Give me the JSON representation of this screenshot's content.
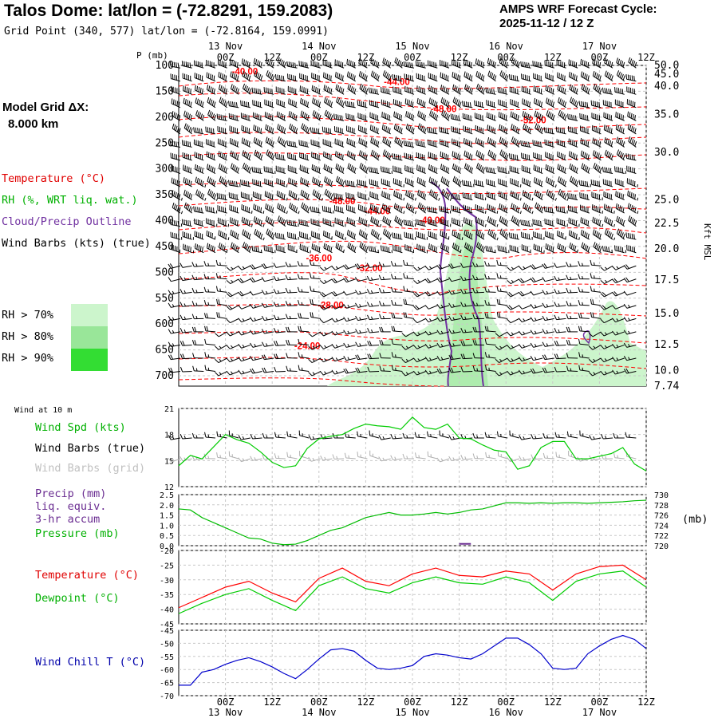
{
  "header": {
    "title": "Talos Dome:  lat/lon = (-72.8291, 159.2083)",
    "grid_point": "Grid Point (340, 577) lat/lon = (-72.8164, 159.0991)",
    "cycle_line1": "AMPS WRF Forecast Cycle:",
    "cycle_line2": "2025-11-12 / 12  Z",
    "model_grid_label": "Model Grid ΔX:",
    "model_grid_value": "8.000 km"
  },
  "colors": {
    "temperature": "#ff0000",
    "rh": "#00cc00",
    "cloud": "#7030a0",
    "wind": "#000000",
    "wind_grid": "#b0b0b0",
    "precip": "#6a2c91",
    "pressure": "#00bb00",
    "dewpoint": "#00cc00",
    "windchill": "#0000cc",
    "rh70": "#ccf5cc",
    "rh80": "#99e699",
    "rh90": "#33dd33"
  },
  "legend": {
    "temperature": "Temperature (°C)",
    "rh": "RH (%, WRT liq. wat.)",
    "cloud": "Cloud/Precip Outline",
    "wind": "Wind Barbs (kts) (true)",
    "rh70": "RH > 70%",
    "rh80": "RH > 80%",
    "rh90": "RH > 90%",
    "wind10": "Wind at 10 m",
    "wind_spd": "Wind Spd (kts)",
    "wind_true": "Wind Barbs (true)",
    "wind_grid": "Wind Barbs (grid)",
    "precip1": "Precip (mm)",
    "precip2": "liq. equiv.",
    "precip3": "3-hr accum",
    "pressure": "Pressure (mb)",
    "pressure_unit": "(mb)",
    "temp2": "Temperature (°C)",
    "dewpoint": "Dewpoint (°C)",
    "windchill": "Wind Chill T (°C)"
  },
  "chart_data": [
    {
      "type": "heatmap",
      "name": "time-height cross section",
      "time_ticks": [
        "00Z",
        "12Z",
        "00Z",
        "12Z",
        "00Z",
        "12Z",
        "00Z",
        "12Z",
        "00Z",
        "12Z"
      ],
      "time_tick_hours": [
        0,
        12,
        24,
        36,
        48,
        60,
        72,
        84,
        96,
        108
      ],
      "date_labels": [
        "13 Nov",
        "14 Nov",
        "15 Nov",
        "16 Nov",
        "17 Nov"
      ],
      "date_label_hours": [
        0,
        24,
        48,
        72,
        96
      ],
      "x_range_hours": [
        -12,
        108
      ],
      "pressure_axis_label": "P (mb)",
      "pressure_ticks": [
        100,
        150,
        200,
        250,
        300,
        350,
        400,
        450,
        500,
        550,
        600,
        650,
        700
      ],
      "ylim_mb": [
        100,
        720
      ],
      "height_axis_label": "Kft MSL",
      "height_ticks": [
        {
          "p": 100,
          "label": "50.0"
        },
        {
          "p": 117,
          "label": "45.0"
        },
        {
          "p": 140,
          "label": "40.0"
        },
        {
          "p": 195,
          "label": "35.0"
        },
        {
          "p": 268,
          "label": "30.0"
        },
        {
          "p": 360,
          "label": "25.0"
        },
        {
          "p": 405,
          "label": "22.5"
        },
        {
          "p": 455,
          "label": "20.0"
        },
        {
          "p": 515,
          "label": "17.5"
        },
        {
          "p": 580,
          "label": "15.0"
        },
        {
          "p": 640,
          "label": "12.5"
        },
        {
          "p": 690,
          "label": "10.0"
        },
        {
          "p": 720,
          "label": "7.74"
        }
      ],
      "temperature_labels": [
        {
          "t": 5,
          "p": 118,
          "label": "-40.00"
        },
        {
          "t": 44,
          "p": 138,
          "label": "-44.00"
        },
        {
          "t": 56,
          "p": 190,
          "label": "-48.00"
        },
        {
          "t": 79,
          "p": 212,
          "label": "-52.00"
        },
        {
          "t": 30,
          "p": 368,
          "label": "-48.00"
        },
        {
          "t": 39,
          "p": 388,
          "label": "-44.00"
        },
        {
          "t": 53,
          "p": 405,
          "label": "-40.00"
        },
        {
          "t": 24,
          "p": 479,
          "label": "-36.00"
        },
        {
          "t": 37,
          "p": 498,
          "label": "-32.00"
        },
        {
          "t": 27,
          "p": 570,
          "label": "-28.00"
        },
        {
          "t": 21,
          "p": 648,
          "label": "-24.00"
        }
      ]
    },
    {
      "type": "line",
      "name": "wind speed 10 m",
      "series": [
        {
          "name": "Wind Spd (kts)",
          "x": [
            -12,
            -9,
            -6,
            -3,
            0,
            3,
            6,
            9,
            12,
            15,
            18,
            21,
            24,
            27,
            30,
            33,
            36,
            39,
            42,
            45,
            48,
            51,
            54,
            57,
            60,
            63,
            66,
            69,
            72,
            75,
            78,
            81,
            84,
            87,
            90,
            93,
            96,
            99,
            102,
            105,
            108
          ],
          "values": [
            14.4,
            15.6,
            15.2,
            16.6,
            18,
            17.4,
            17,
            16,
            14.8,
            14.2,
            14.4,
            16.4,
            17.5,
            17.8,
            18,
            18.7,
            19.2,
            19,
            18.9,
            18.6,
            20,
            18.8,
            18.6,
            19.2,
            17.6,
            17.5,
            16.8,
            16.2,
            16,
            14,
            14.4,
            16.5,
            17.2,
            17.2,
            15.2,
            15.2,
            15.5,
            15.8,
            16.5,
            14.6,
            13.8
          ]
        }
      ],
      "ylim": [
        12,
        21
      ],
      "yticks": [
        12,
        15,
        18,
        21
      ]
    },
    {
      "type": "line",
      "name": "precip and pressure",
      "series": [
        {
          "name": "Pressure (mb)",
          "x": [
            -12,
            -9,
            -6,
            -3,
            0,
            3,
            6,
            9,
            12,
            15,
            18,
            21,
            24,
            27,
            30,
            33,
            36,
            39,
            42,
            45,
            48,
            51,
            54,
            57,
            60,
            63,
            66,
            69,
            72,
            75,
            78,
            81,
            84,
            87,
            90,
            93,
            96,
            99,
            102,
            105,
            108
          ],
          "values": [
            727.2,
            727,
            725.5,
            724.5,
            723.5,
            722.5,
            721.5,
            721.3,
            720.5,
            720.2,
            720.3,
            721,
            722,
            723,
            723.5,
            724.5,
            725.5,
            726,
            726.5,
            726,
            726,
            726.2,
            726.5,
            726.2,
            726.5,
            727,
            727.2,
            727.8,
            728.4,
            728.4,
            728.3,
            728.4,
            728.3,
            728.4,
            728.4,
            728.3,
            728.4,
            728.5,
            728.6,
            728.8,
            728.9
          ]
        },
        {
          "name": "Precip (mm)",
          "x": [
            60,
            63
          ],
          "values": [
            0.05,
            0.05
          ]
        }
      ],
      "precip_ylim": [
        0,
        2.5
      ],
      "precip_yticks": [
        0,
        0.5,
        1,
        1.5,
        2,
        2.5
      ],
      "pressure_ylim": [
        720,
        730
      ],
      "pressure_yticks": [
        720,
        722,
        724,
        726,
        728,
        730
      ]
    },
    {
      "type": "line",
      "name": "temperature and dewpoint",
      "series": [
        {
          "name": "Temperature (°C)",
          "x": [
            -12,
            -6,
            0,
            6,
            12,
            18,
            24,
            30,
            36,
            42,
            48,
            54,
            60,
            66,
            72,
            78,
            84,
            90,
            96,
            102,
            108
          ],
          "values": [
            -39.5,
            -36,
            -32.5,
            -30.5,
            -34.5,
            -37.5,
            -29.5,
            -26,
            -30.5,
            -32,
            -28,
            -26,
            -28.5,
            -29,
            -27,
            -28,
            -33.5,
            -28,
            -25.5,
            -25,
            -30
          ]
        },
        {
          "name": "Dewpoint (°C)",
          "x": [
            -12,
            -6,
            0,
            6,
            12,
            18,
            24,
            30,
            36,
            42,
            48,
            54,
            60,
            66,
            72,
            78,
            84,
            90,
            96,
            102,
            108
          ],
          "values": [
            -41.5,
            -38,
            -35,
            -33,
            -37,
            -40.5,
            -32,
            -29,
            -33,
            -34.5,
            -31,
            -29,
            -31,
            -31.5,
            -29,
            -31,
            -37,
            -30.5,
            -28,
            -27,
            -32.5
          ]
        }
      ],
      "ylim": [
        -45,
        -20
      ],
      "yticks": [
        -45,
        -40,
        -35,
        -30,
        -25,
        -20
      ]
    },
    {
      "type": "line",
      "name": "wind chill",
      "series": [
        {
          "name": "Wind Chill T (°C)",
          "x": [
            -12,
            -9,
            -6,
            -3,
            0,
            3,
            6,
            9,
            12,
            15,
            18,
            21,
            24,
            27,
            30,
            33,
            36,
            39,
            42,
            45,
            48,
            51,
            54,
            57,
            60,
            63,
            66,
            69,
            72,
            75,
            78,
            81,
            84,
            87,
            90,
            93,
            96,
            99,
            102,
            105,
            108
          ],
          "values": [
            -66,
            -66,
            -61,
            -60,
            -58,
            -56.5,
            -55.5,
            -57,
            -59,
            -61.5,
            -63.5,
            -60,
            -56,
            -52.5,
            -52,
            -53,
            -56.5,
            -59.5,
            -60,
            -59.5,
            -58.5,
            -55,
            -54,
            -54.5,
            -55.5,
            -56,
            -54,
            -51,
            -48,
            -48,
            -50.5,
            -54,
            -59.5,
            -60,
            -59.5,
            -54,
            -51,
            -48.5,
            -47,
            -48.5,
            -52
          ]
        }
      ],
      "ylim": [
        -70,
        -45
      ],
      "yticks": [
        -70,
        -65,
        -60,
        -55,
        -50,
        -45
      ]
    }
  ]
}
